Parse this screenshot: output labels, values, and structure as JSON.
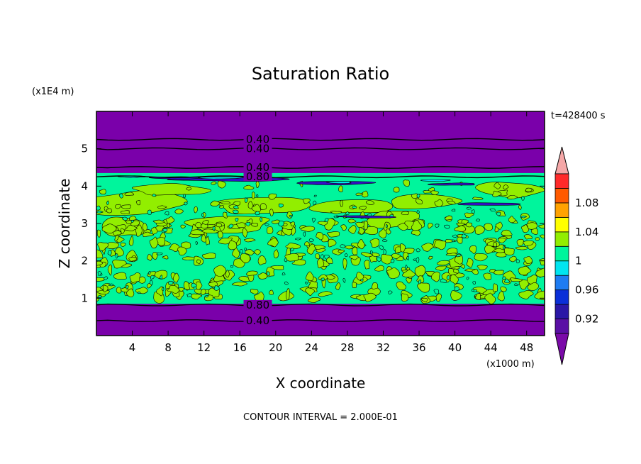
{
  "chart_data": {
    "type": "heatmap",
    "title": "Saturation Ratio",
    "xlabel": "X coordinate",
    "ylabel": "Z coordinate",
    "x_units": "(x1000 m)",
    "y_units": "(x1E4 m)",
    "time_label": "t=428400 s",
    "footer": "CONTOUR INTERVAL = 2.000E-01",
    "xlim": [
      0,
      50
    ],
    "ylim": [
      0,
      6
    ],
    "x_ticks": [
      4,
      8,
      12,
      16,
      20,
      24,
      28,
      32,
      36,
      40,
      44,
      48
    ],
    "y_ticks": [
      1,
      2,
      3,
      4,
      5
    ],
    "cloud_layer": {
      "z_bottom": 0.85,
      "z_top": 4.35
    },
    "contour_lines": [
      {
        "z": 5.25,
        "label": "0.40"
      },
      {
        "z": 5.0,
        "label": "0.40"
      },
      {
        "z": 4.5,
        "label": "0.40"
      },
      {
        "z": 4.25,
        "label": "0.80"
      },
      {
        "z": 0.82,
        "label": "0.80"
      },
      {
        "z": 0.4,
        "label": "0.40"
      }
    ],
    "colorbar": {
      "labels": [
        "1.08",
        "1.04",
        "1",
        "0.96",
        "0.92"
      ],
      "levels": [
        0.9,
        0.92,
        0.94,
        0.96,
        0.98,
        1.0,
        1.02,
        1.04,
        1.06,
        1.08,
        1.1
      ],
      "colors": [
        "#5a0fa5",
        "#2a17a6",
        "#0a2fd8",
        "#1e7cf2",
        "#00e5f0",
        "#00f59c",
        "#92ee00",
        "#ffff00",
        "#ffa200",
        "#ff5a00",
        "#ff2a2a"
      ],
      "under_color": "#7a0aa8",
      "over_color": "#f5a7a7"
    },
    "colors": {
      "background_region": "#7a00aa",
      "cloud_main": "#00f59c",
      "cloud_patch": "#92ee00",
      "dry_streak": "#3410c4"
    }
  }
}
